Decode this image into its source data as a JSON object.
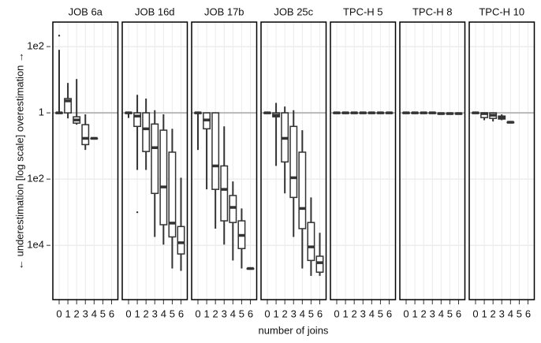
{
  "chart_data": {
    "type": "boxplot",
    "log": true,
    "grid": true,
    "hline": 1,
    "color": "#333333",
    "ylabel": "← underestimation   [log scale]   overestimation →",
    "xlabel": "number of joins",
    "categories": [
      "0",
      "1",
      "2",
      "3",
      "4",
      "5",
      "6"
    ],
    "ylim": [
      2.3e-06,
      550
    ],
    "yticks": [
      {
        "value": 100,
        "label": "1e2"
      },
      1,
      {
        "value": 0.01,
        "label": "1e2"
      },
      {
        "value": 0.0001,
        "label": "1e4"
      }
    ],
    "facets": [
      {
        "title": "JOB 6a",
        "boxes": [
          [
            1,
            1,
            1,
            1,
            80
          ],
          [
            0.68,
            1,
            2.3,
            2.7,
            8
          ],
          [
            0.44,
            0.49,
            0.61,
            0.76,
            10.5
          ],
          [
            0.076,
            0.11,
            0.17,
            0.44,
            0.9
          ],
          [
            0.17,
            0.17,
            0.17,
            0.17,
            0.17
          ],
          null,
          null
        ],
        "outliers": [
          [
            214
          ],
          [],
          [],
          [],
          [],
          [],
          []
        ]
      },
      {
        "title": "JOB 16d",
        "boxes": [
          [
            0.7,
            1,
            1,
            1,
            1
          ],
          [
            0.019,
            0.39,
            0.8,
            1,
            3.5
          ],
          [
            0.019,
            0.068,
            0.33,
            1,
            2.7
          ],
          [
            0.00018,
            0.0037,
            0.089,
            0.46,
            1.2
          ],
          [
            0.000105,
            0.00042,
            0.0058,
            0.3,
            0.9
          ],
          [
            2e-05,
            0.00018,
            0.00047,
            0.065,
            0.33
          ],
          [
            1.7e-05,
            5.5e-05,
            0.00012,
            0.00037,
            0.011
          ]
        ],
        "outliers": [
          [],
          [
            0.001
          ],
          [],
          [],
          [],
          [],
          []
        ]
      },
      {
        "title": "JOB 17b",
        "boxes": [
          [
            0.076,
            1,
            1,
            1,
            1
          ],
          [
            0.0049,
            0.33,
            0.61,
            1,
            1
          ],
          [
            0.00032,
            0.0049,
            0.025,
            1,
            1
          ],
          [
            0.000105,
            0.00055,
            0.0049,
            0.025,
            0.39
          ],
          [
            3.5e-05,
            0.00049,
            0.0014,
            0.0032,
            0.0085
          ],
          [
            2e-05,
            8e-05,
            0.0002,
            0.00055,
            0.0013
          ],
          [
            2e-05,
            2e-05,
            2e-05,
            2e-05,
            2e-05
          ]
        ],
        "outliers": [
          [],
          [],
          [],
          [],
          [],
          [],
          []
        ]
      },
      {
        "title": "JOB 25c",
        "boxes": [
          [
            1,
            1,
            1,
            1,
            1
          ],
          [
            0.025,
            0.76,
            0.85,
            1,
            2
          ],
          [
            0.0037,
            0.033,
            0.17,
            1,
            1.55
          ],
          [
            0.00018,
            0.0028,
            0.011,
            0.39,
            1.2
          ],
          [
            2e-05,
            0.00032,
            0.0013,
            0.065,
            0.3
          ],
          [
            1.2e-05,
            3.5e-05,
            9e-05,
            0.00049,
            0.0028
          ],
          [
            1.2e-05,
            1.55e-05,
            3e-05,
            4.7e-05,
            0.00024
          ]
        ],
        "outliers": [
          [],
          [],
          [],
          [],
          [],
          [],
          []
        ]
      },
      {
        "title": "TPC-H 5",
        "boxes": [
          [
            1,
            1,
            1,
            1,
            1
          ],
          [
            1,
            1,
            1,
            1,
            1
          ],
          [
            1,
            1,
            1,
            1,
            1
          ],
          [
            1,
            1,
            1,
            1,
            1
          ],
          [
            1,
            1,
            1,
            1,
            1
          ],
          [
            1,
            1,
            1,
            1,
            1
          ],
          [
            1,
            1,
            1,
            1,
            1
          ]
        ],
        "outliers": [
          [],
          [],
          [],
          [],
          [],
          [],
          []
        ]
      },
      {
        "title": "TPC-H 8",
        "boxes": [
          [
            1,
            1,
            1,
            1,
            1
          ],
          [
            1,
            1,
            1,
            1,
            1
          ],
          [
            1,
            1,
            1,
            1,
            1
          ],
          [
            1,
            1,
            1,
            1,
            1
          ],
          [
            0.95,
            0.95,
            0.95,
            0.95,
            0.95
          ],
          [
            0.95,
            0.95,
            0.95,
            0.95,
            0.95
          ],
          [
            0.95,
            0.95,
            0.95,
            0.95,
            0.95
          ]
        ],
        "outliers": [
          [],
          [],
          [],
          [],
          [],
          [],
          []
        ]
      },
      {
        "title": "TPC-H 10",
        "boxes": [
          [
            1,
            1,
            1,
            1,
            1
          ],
          [
            0.6,
            0.72,
            0.95,
            1,
            1
          ],
          [
            0.55,
            0.68,
            0.85,
            1,
            1
          ],
          [
            0.6,
            0.65,
            0.72,
            0.8,
            0.9
          ],
          [
            0.52,
            0.52,
            0.52,
            0.52,
            0.52
          ],
          null,
          null
        ],
        "outliers": [
          [],
          [],
          [],
          [],
          [],
          [],
          []
        ]
      }
    ]
  }
}
